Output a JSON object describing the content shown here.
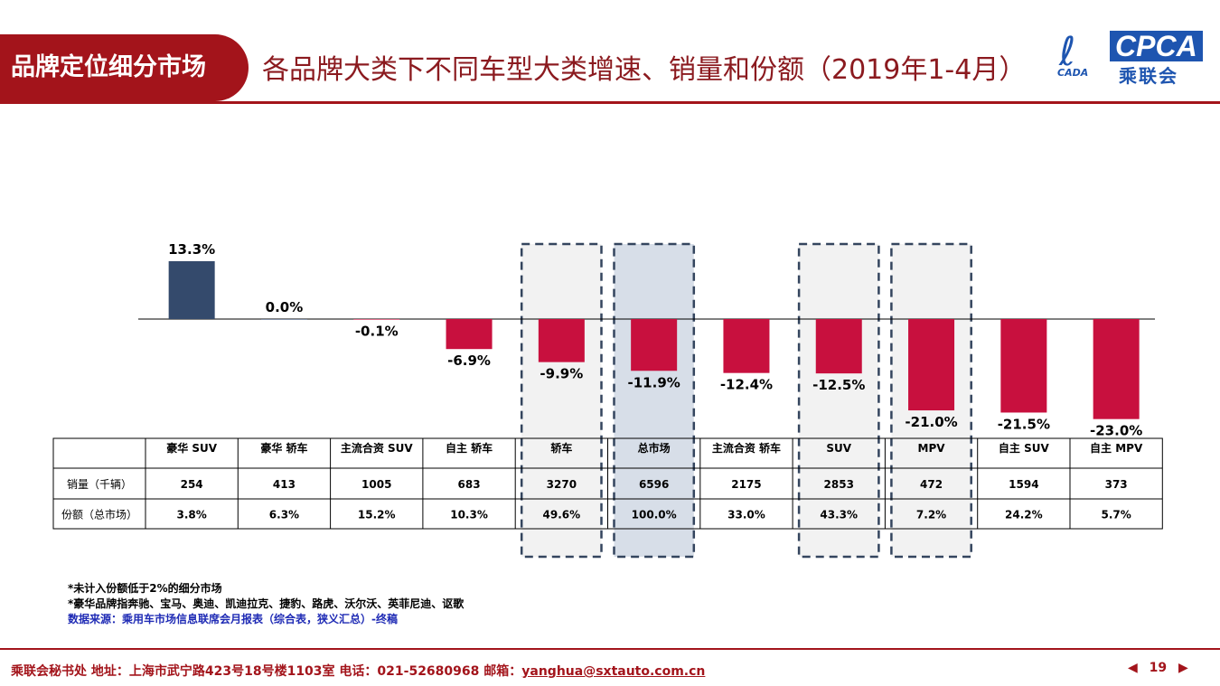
{
  "header": {
    "badge": "品牌定位细分市场",
    "title": "各品牌大类下不同车型大类增速、销量和份额（2019年1-4月）",
    "logo_text": "CPCA",
    "logo_sub": "乘联会",
    "logo_mark": "CADA"
  },
  "chart_data": {
    "type": "bar",
    "categories": [
      "豪华 SUV",
      "豪华 轿车",
      "主流合资 SUV",
      "自主 轿车",
      "轿车",
      "总市场",
      "主流合资 轿车",
      "SUV",
      "MPV",
      "自主 SUV",
      "自主 MPV"
    ],
    "values": [
      13.3,
      0.0,
      -0.1,
      -6.9,
      -9.9,
      -11.9,
      -12.4,
      -12.5,
      -21.0,
      -21.5,
      -23.0
    ],
    "value_labels": [
      "13.3%",
      "0.0%",
      "-0.1%",
      "-6.9%",
      "-9.9%",
      "-11.9%",
      "-12.4%",
      "-12.5%",
      "-21.0%",
      "-21.5%",
      "-23.0%"
    ],
    "ylim": [
      -23,
      13.3
    ],
    "colors": {
      "positive": "#344a6c",
      "negative": "#c8103e"
    },
    "highlight_columns": [
      4,
      5,
      7,
      8
    ],
    "filled_highlight_column": 5,
    "table": {
      "rows": [
        {
          "label": "销量（千辆）",
          "values": [
            "254",
            "413",
            "1005",
            "683",
            "3270",
            "6596",
            "2175",
            "2853",
            "472",
            "1594",
            "373"
          ]
        },
        {
          "label": "份额（总市场）",
          "values": [
            "3.8%",
            "6.3%",
            "15.2%",
            "10.3%",
            "49.6%",
            "100.0%",
            "33.0%",
            "43.3%",
            "7.2%",
            "24.2%",
            "5.7%"
          ]
        }
      ]
    }
  },
  "notes": [
    "*未计入份额低于2%的细分市场",
    "*豪华品牌指奔驰、宝马、奥迪、凯迪拉克、捷豹、路虎、沃尔沃、英菲尼迪、讴歌"
  ],
  "source": "数据来源：乘用车市场信息联席会月报表（综合表，狭义汇总）-终稿",
  "footer": {
    "text": "乘联会秘书处   地址：上海市武宁路423号18号楼1103室  电话：021-52680968   邮箱：",
    "email": "yanghua@sxtauto.com.cn",
    "page": "19"
  }
}
